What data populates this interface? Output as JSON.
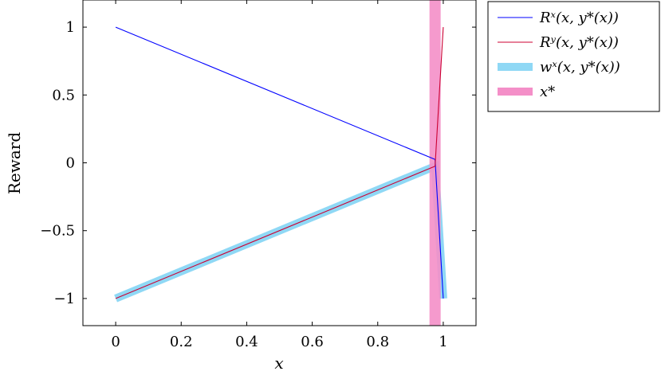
{
  "chart_data": {
    "type": "line",
    "title": "",
    "xlabel": "x",
    "ylabel": "Reward",
    "xlim": [
      -0.1,
      1.1
    ],
    "ylim": [
      -1.2,
      1.2
    ],
    "xticks": [
      0,
      0.2,
      0.4,
      0.6,
      0.8,
      1
    ],
    "xtick_labels": [
      "0",
      "0.2",
      "0.4",
      "0.6",
      "0.8",
      "1"
    ],
    "yticks": [
      -1,
      -0.5,
      0,
      0.5,
      1
    ],
    "ytick_labels": [
      "−1",
      "−0.5",
      "0",
      "0.5",
      "1"
    ],
    "grid": false,
    "legend_position": "outside-top-right",
    "series": [
      {
        "name": "R^x(x, y*(x))",
        "legend_label": "Rˣ(x, y*(x))",
        "color": "#0000ff",
        "style": "thin",
        "x": [
          0,
          0.975,
          1.0
        ],
        "y": [
          1,
          0.025,
          -1
        ]
      },
      {
        "name": "R^y(x, y*(x))",
        "legend_label": "Rʸ(x, y*(x))",
        "color": "#cc0033",
        "style": "thin",
        "x": [
          0,
          0.975,
          1.0
        ],
        "y": [
          -1,
          -0.025,
          1
        ]
      },
      {
        "name": "w^x(x, y*(x))",
        "legend_label": "wˣ(x, y*(x))",
        "color": "#8fd8f5",
        "style": "thick",
        "x": [
          0,
          0.975,
          1.0
        ],
        "y": [
          -1,
          -0.025,
          -1
        ]
      },
      {
        "name": "x*",
        "legend_label": "x*",
        "color": "#f48fc8",
        "style": "thick-vertical",
        "x": [
          0.975,
          0.975
        ],
        "y": [
          -1.2,
          1.2
        ]
      }
    ]
  }
}
